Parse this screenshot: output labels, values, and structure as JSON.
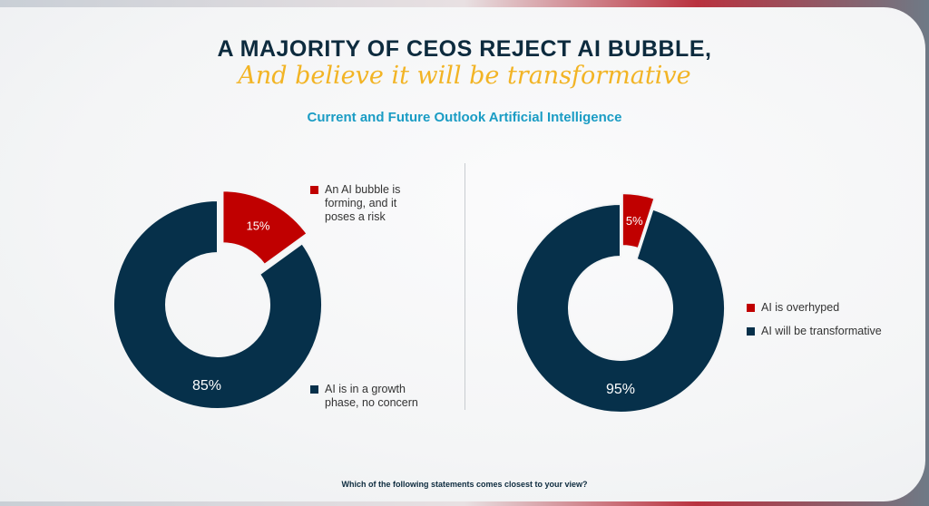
{
  "header": {
    "title": "A MAJORITY OF CEOS REJECT AI BUBBLE,",
    "subtitle": "And believe it will be transformative",
    "chart_heading": "Current and Future Outlook Artificial Intelligence"
  },
  "footer": {
    "question": "Which of the following statements comes closest to your view?"
  },
  "colors": {
    "red": "#c00000",
    "navy": "#06304a"
  },
  "chart_data": [
    {
      "type": "pie",
      "title": "Current and Future Outlook Artificial Intelligence",
      "categories": [
        "An AI bubble is forming, and it poses a risk",
        "AI is in a growth phase, no concern"
      ],
      "values": [
        15,
        85
      ],
      "labels": [
        "15%",
        "85%"
      ],
      "colors": [
        "#c00000",
        "#06304a"
      ],
      "legend_placement": "right"
    },
    {
      "type": "pie",
      "title": "Current and Future Outlook Artificial Intelligence",
      "categories": [
        "AI is overhyped",
        "AI will be transformative"
      ],
      "values": [
        5,
        95
      ],
      "labels": [
        "5%",
        "95%"
      ],
      "colors": [
        "#c00000",
        "#06304a"
      ],
      "legend_placement": "right"
    }
  ]
}
